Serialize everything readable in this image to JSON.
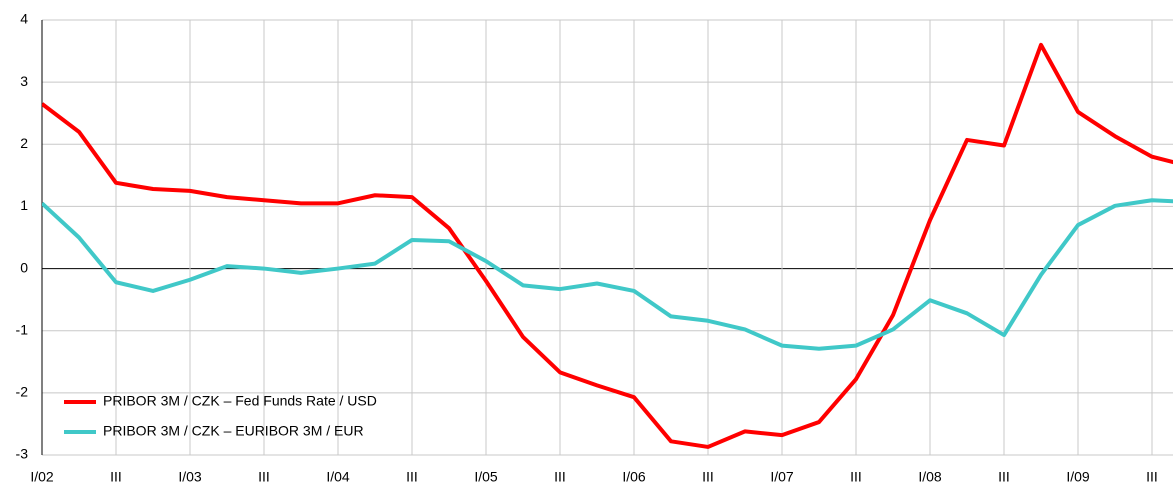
{
  "chart_data": {
    "type": "line",
    "categories": [
      "I/02",
      null,
      "III",
      null,
      "I/03",
      null,
      "III",
      null,
      "I/04",
      null,
      "III",
      null,
      "I/05",
      null,
      "III",
      null,
      "I/06",
      null,
      "III",
      null,
      "I/07",
      null,
      "III",
      null,
      "I/08",
      null,
      "III",
      null,
      "I/09",
      null,
      "III",
      null
    ],
    "series": [
      {
        "name": "PRIBOR 3M / CZK – Fed Funds Rate / USD",
        "color": "#ff0000",
        "values": [
          2.65,
          2.2,
          1.38,
          1.28,
          1.25,
          1.15,
          1.1,
          1.05,
          1.05,
          1.18,
          1.15,
          0.65,
          -0.2,
          -1.1,
          -1.67,
          -1.88,
          -2.07,
          -2.78,
          -2.87,
          -2.62,
          -2.68,
          -2.47,
          -1.78,
          -0.75,
          0.78,
          2.07,
          1.98,
          3.6,
          2.52,
          2.13,
          1.8,
          1.65
        ]
      },
      {
        "name": "PRIBOR 3M / CZK – EURIBOR 3M / EUR",
        "color": "#40c8c8",
        "values": [
          1.05,
          0.5,
          -0.22,
          -0.36,
          -0.18,
          0.04,
          0.0,
          -0.07,
          0.0,
          0.08,
          0.46,
          0.44,
          0.12,
          -0.27,
          -0.33,
          -0.24,
          -0.36,
          -0.77,
          -0.84,
          -0.98,
          -1.24,
          -1.29,
          -1.24,
          -0.98,
          -0.51,
          -0.72,
          -1.07,
          -0.1,
          0.7,
          1.01,
          1.1,
          1.07
        ]
      }
    ],
    "ylim": [
      -3,
      4
    ],
    "yticks": [
      -3,
      -2,
      -1,
      0,
      1,
      2,
      3,
      4
    ],
    "grid": true,
    "legend": "lower left"
  }
}
